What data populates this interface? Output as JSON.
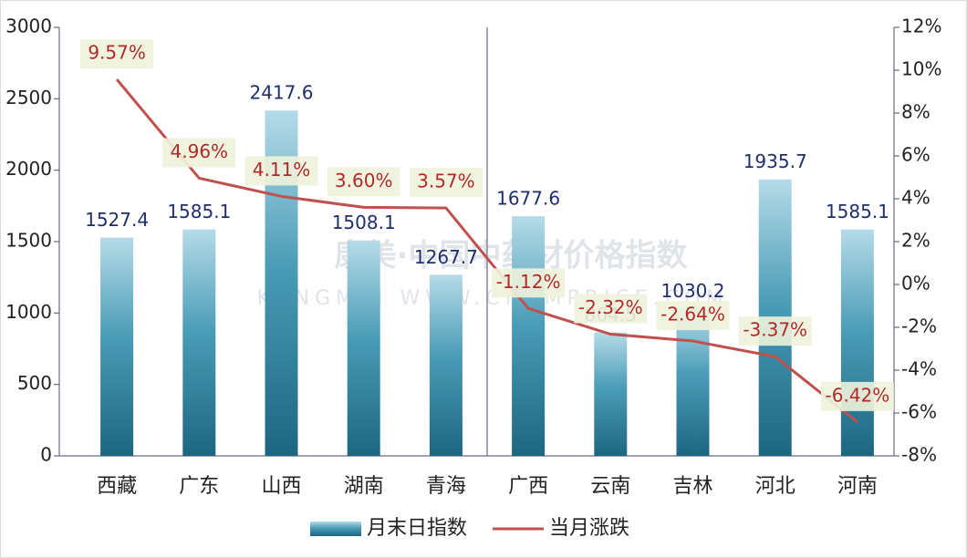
{
  "chart_data": {
    "type": "bar_line",
    "watermark": "康美·中国中药材价格指数",
    "watermark_sub": "KANGMEI WWW.CNKMPRICE.COM",
    "categories": [
      "西藏",
      "广东",
      "山西",
      "湖南",
      "青海",
      "广西",
      "云南",
      "吉林",
      "河北",
      "河南"
    ],
    "series": [
      {
        "name": "月末日指数",
        "type": "bar",
        "color": "#2a7c98",
        "values": [
          1527.4,
          1585.1,
          2417.6,
          1508.1,
          1267.7,
          1677.6,
          864.5,
          1030.2,
          1935.7,
          1585.1
        ]
      },
      {
        "name": "当月涨跌",
        "type": "line",
        "axis": "y2",
        "color": "#c0504d",
        "values": [
          9.57,
          4.96,
          4.11,
          3.6,
          3.57,
          -1.12,
          -2.32,
          -2.64,
          -3.37,
          -6.42
        ],
        "value_labels": [
          "9.57%",
          "4.96%",
          "4.11%",
          "3.60%",
          "3.57%",
          "-1.12%",
          "-2.32%",
          "-2.64%",
          "-3.37%",
          "-6.42%"
        ]
      }
    ],
    "ylim": [
      0,
      3000
    ],
    "yticks": [
      0,
      500,
      1000,
      1500,
      2000,
      2500,
      3000
    ],
    "y2lim": [
      -8,
      12
    ],
    "y2ticks": [
      {
        "value": -8,
        "label": "-8%"
      },
      {
        "value": -6,
        "label": "-6%"
      },
      {
        "value": -4,
        "label": "-4%"
      },
      {
        "value": -2,
        "label": "-2%"
      },
      {
        "value": 0,
        "label": "0%"
      },
      {
        "value": 2,
        "label": "2%"
      },
      {
        "value": 4,
        "label": "4%"
      },
      {
        "value": 6,
        "label": "6%"
      },
      {
        "value": 8,
        "label": "8%"
      },
      {
        "value": 10,
        "label": "10%"
      },
      {
        "value": 12,
        "label": "12%"
      }
    ],
    "legend": "bottom"
  }
}
